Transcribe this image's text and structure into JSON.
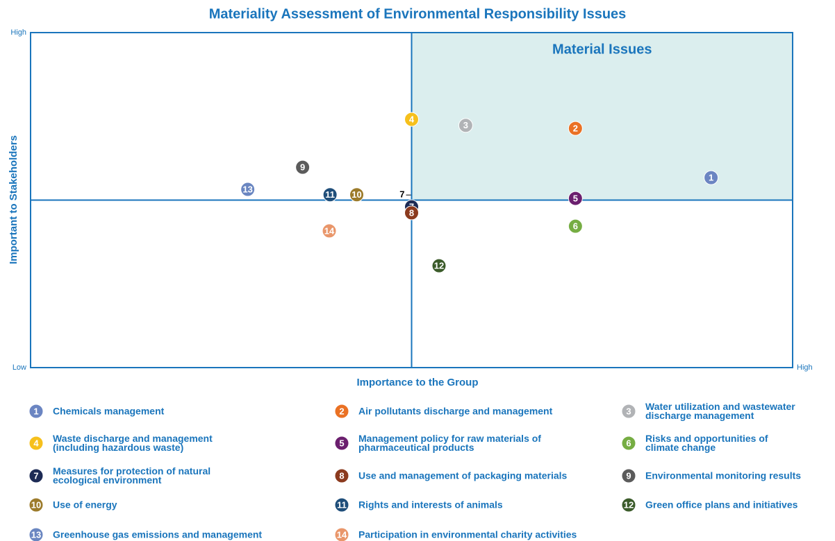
{
  "chart_data": {
    "type": "scatter",
    "title": "Materiality Assessment of Environmental Responsibility Issues",
    "xlabel": "Importance to the Group",
    "ylabel": "Important to Stakeholders",
    "annotation": "Material Issues",
    "xlim": [
      0,
      100
    ],
    "ylim": [
      0,
      100
    ],
    "xticks": [
      {
        "value": 0,
        "label": "Low"
      },
      {
        "value": 100,
        "label": "High"
      }
    ],
    "yticks": [
      {
        "value": 100,
        "label": "High"
      }
    ],
    "series": [
      {
        "marker": "1",
        "name": "Chemicals management",
        "color": "#6b85c2",
        "x": 89.3,
        "y": 56.7
      },
      {
        "marker": "2",
        "name": "Air pollutants discharge and management",
        "color": "#ea7124",
        "x": 71.5,
        "y": 71.4
      },
      {
        "marker": "3",
        "name": "Water utilization and wastewater\ndischarge management",
        "color": "#b1b3b6",
        "x": 57.1,
        "y": 72.3
      },
      {
        "marker": "4",
        "name": "Waste discharge and management\n(including hazardous waste)",
        "color": "#f6c01c",
        "x": 50.0,
        "y": 74.1
      },
      {
        "marker": "5",
        "name": "Management policy for raw materials of\npharmaceutical products",
        "color": "#6b1f6e",
        "x": 71.5,
        "y": 50.5
      },
      {
        "marker": "6",
        "name": "Risks and opportunities of\nclimate change",
        "color": "#76ad43",
        "x": 71.5,
        "y": 42.2
      },
      {
        "marker": "7",
        "name": "Measures for protection of natural\necological environment",
        "color": "#1d2b55",
        "x": 50.0,
        "y": 48.0
      },
      {
        "marker": "8",
        "name": "Use and management of packaging materials",
        "color": "#8b3a1e",
        "x": 50.0,
        "y": 46.2
      },
      {
        "marker": "9",
        "name": "Environmental monitoring results",
        "color": "#5b5b5b",
        "x": 35.7,
        "y": 59.8
      },
      {
        "marker": "10",
        "name": "Use of energy",
        "color": "#9c7b2b",
        "x": 42.8,
        "y": 51.6
      },
      {
        "marker": "11",
        "name": "Rights and interests of animals",
        "color": "#1f4e7a",
        "x": 39.3,
        "y": 51.6
      },
      {
        "marker": "12",
        "name": "Green office plans and initiatives",
        "color": "#3b5b2a",
        "x": 53.6,
        "y": 30.4
      },
      {
        "marker": "13",
        "name": "Greenhouse gas emissions and management",
        "color": "#6a86c1",
        "x": 28.5,
        "y": 53.2
      },
      {
        "marker": "14",
        "name": "Participation in environmental charity activities",
        "color": "#e9966a",
        "x": 39.2,
        "y": 40.8
      }
    ]
  }
}
